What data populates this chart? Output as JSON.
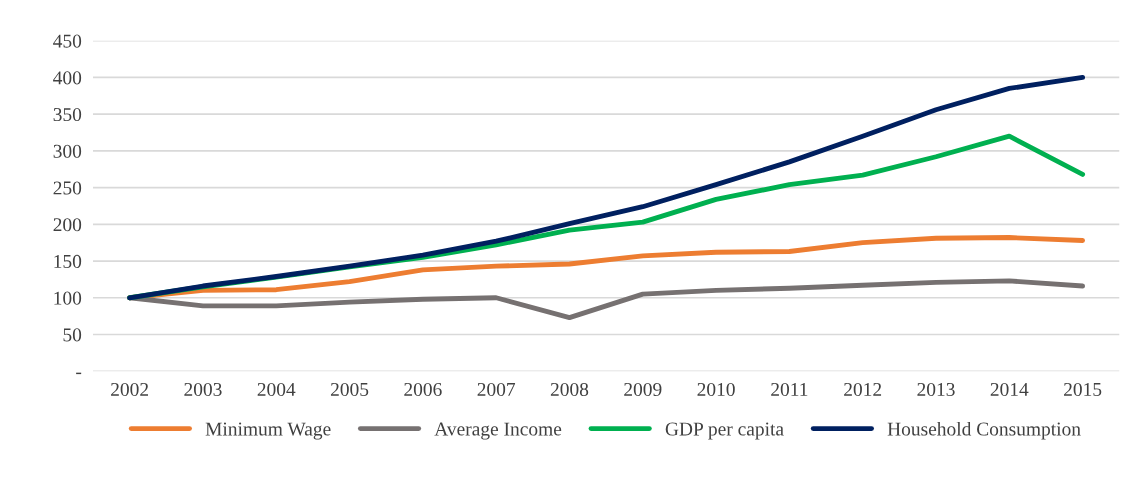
{
  "chart_data": {
    "type": "line",
    "categories": [
      "2002",
      "2003",
      "2004",
      "2005",
      "2006",
      "2007",
      "2008",
      "2009",
      "2010",
      "2011",
      "2012",
      "2013",
      "2014",
      "2015"
    ],
    "series": [
      {
        "name": "Minimum Wage",
        "color": "#ed7d31",
        "values": [
          100,
          110,
          111,
          122,
          138,
          143,
          146,
          157,
          162,
          163,
          175,
          181,
          182,
          178
        ]
      },
      {
        "name": "Average Income",
        "color": "#767171",
        "values": [
          100,
          89,
          89,
          94,
          98,
          100,
          73,
          105,
          110,
          113,
          117,
          121,
          123,
          116
        ]
      },
      {
        "name": "GDP per capita",
        "color": "#00b050",
        "values": [
          100,
          115,
          128,
          142,
          155,
          172,
          192,
          203,
          234,
          254,
          267,
          292,
          320,
          268
        ]
      },
      {
        "name": "Household Consumption",
        "color": "#002060",
        "values": [
          100,
          116,
          129,
          143,
          158,
          177,
          201,
          224,
          254,
          285,
          320,
          356,
          385,
          400
        ]
      }
    ],
    "ylim": [
      0,
      450
    ],
    "yticks": [
      {
        "value": 0,
        "label": "-"
      },
      50,
      100,
      150,
      200,
      250,
      300,
      350,
      400,
      450
    ],
    "grid": "y",
    "legend": "bottom",
    "marker": "none",
    "line_style": "solid"
  }
}
